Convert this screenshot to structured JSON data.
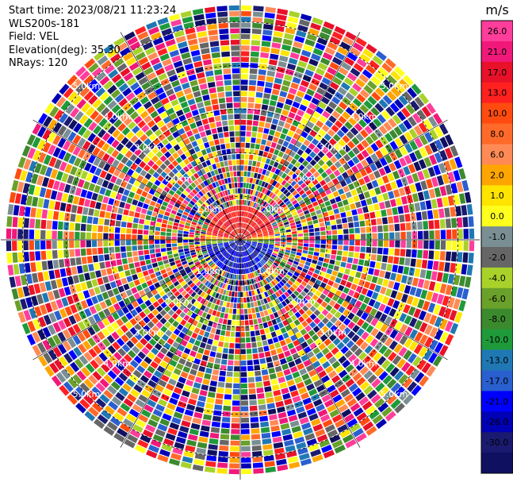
{
  "header": {
    "start_time": "Start time: 2023/08/21 11:23:24",
    "instrument": "WLS200s-181",
    "field": "Field: VEL",
    "elevation": "Elevation(deg): 35.30",
    "nrays": "NRays: 120"
  },
  "colorbar": {
    "unit": "m/s",
    "ticks": [
      "26.0",
      "21.0",
      "17.0",
      "13.0",
      "10.0",
      "8.0",
      "6.0",
      "2.0",
      "1.0",
      "0.0",
      "-1.0",
      "-2.0",
      "-4.0",
      "-6.0",
      "-8.0",
      "-10.0",
      "-13.0",
      "-17.0",
      "-21.0",
      "-26.0",
      "-30.0"
    ],
    "colors": [
      "#ff3d9b",
      "#f0197a",
      "#e8112a",
      "#ff2020",
      "#ff4b0f",
      "#ff6a2a",
      "#ff8a55",
      "#ffa500",
      "#ffe400",
      "#ffff1e",
      "#7a8f94",
      "#666666",
      "#a8d22a",
      "#6aa12a",
      "#3c8a2e",
      "#1f9a3a",
      "#1f78b4",
      "#2a5fd0",
      "#0000ff",
      "#0000b4",
      "#1a1a70",
      "#101060"
    ]
  },
  "chart_data": {
    "type": "heatmap",
    "projection": "polar-ppi",
    "field": "VEL",
    "unit": "m/s",
    "nrays": 120,
    "max_range_km": 5.5,
    "range_ring_labels": [
      "1.0km",
      "2.0km",
      "3.0km",
      "4.0km",
      "5.0km"
    ],
    "valid_data_range_km": 1.0,
    "near_field": {
      "north_half_velocity_mps": [
        17,
        21
      ],
      "south_half_velocity_mps": [
        -21,
        -13
      ]
    },
    "far_field": "noise (random velocities across full color scale)"
  }
}
